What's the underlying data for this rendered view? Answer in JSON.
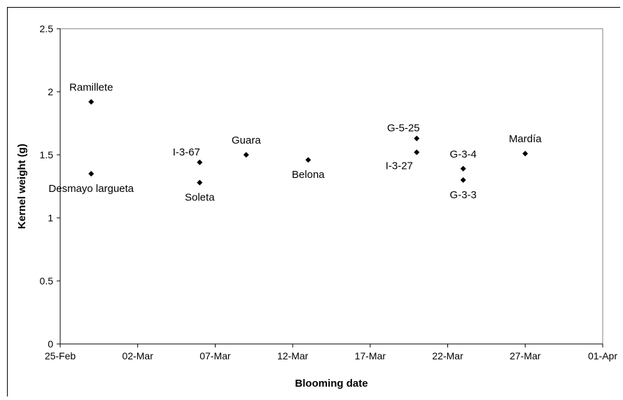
{
  "chart_data": {
    "type": "scatter",
    "title": "",
    "xlabel": "Blooming date",
    "ylabel": "Kernel weight (g)",
    "x_ticks": [
      "25-Feb",
      "02-Mar",
      "07-Mar",
      "12-Mar",
      "17-Mar",
      "22-Mar",
      "27-Mar",
      "01-Apr"
    ],
    "y_ticks": [
      "0",
      "0.5",
      "1",
      "1.5",
      "2",
      "2.5"
    ],
    "xlim": [
      "2001-02-25",
      "2001-04-01"
    ],
    "ylim": [
      0,
      2.5
    ],
    "grid": false,
    "marker_color": "#000000",
    "points": [
      {
        "label": "Ramillete",
        "x": "2001-02-27",
        "y": 1.92,
        "label_pos": "above"
      },
      {
        "label": "Desmayo largueta",
        "x": "2001-02-27",
        "y": 1.35,
        "label_pos": "below"
      },
      {
        "label": "I-3-67",
        "x": "2001-03-06",
        "y": 1.44,
        "label_pos": "above-left"
      },
      {
        "label": "Soleta",
        "x": "2001-03-06",
        "y": 1.28,
        "label_pos": "below"
      },
      {
        "label": "Guara",
        "x": "2001-03-09",
        "y": 1.5,
        "label_pos": "above"
      },
      {
        "label": "Belona",
        "x": "2001-03-13",
        "y": 1.46,
        "label_pos": "below"
      },
      {
        "label": "G-5-25",
        "x": "2001-03-20",
        "y": 1.63,
        "label_pos": "above-left"
      },
      {
        "label": "I-3-27",
        "x": "2001-03-20",
        "y": 1.52,
        "label_pos": "below-left"
      },
      {
        "label": "G-3-4",
        "x": "2001-03-23",
        "y": 1.39,
        "label_pos": "above"
      },
      {
        "label": "G-3-3",
        "x": "2001-03-23",
        "y": 1.3,
        "label_pos": "below"
      },
      {
        "label": "Mardía",
        "x": "2001-03-27",
        "y": 1.51,
        "label_pos": "above"
      }
    ]
  }
}
